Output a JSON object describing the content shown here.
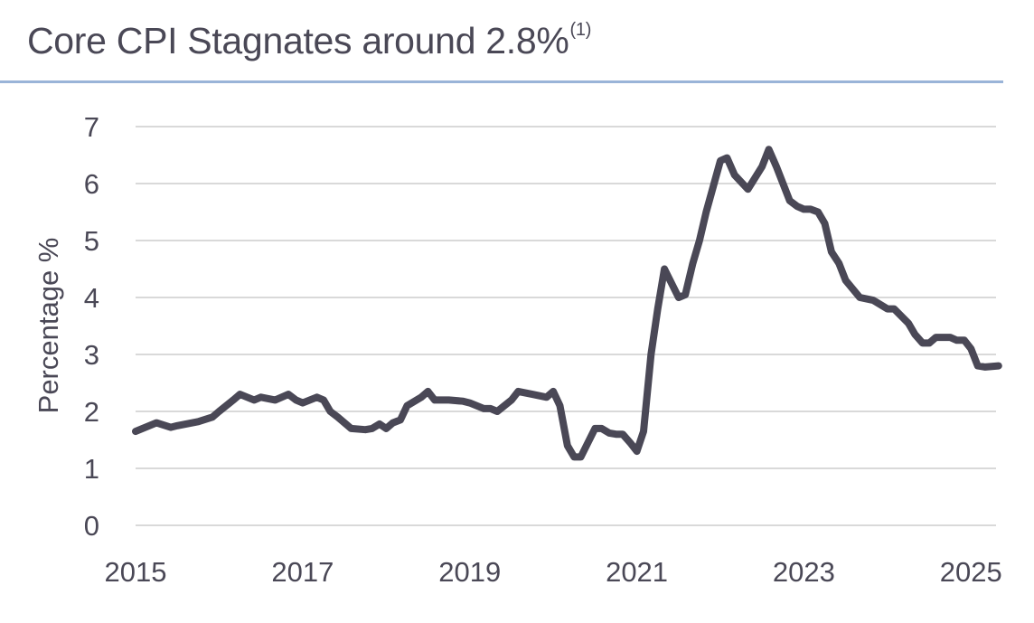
{
  "chart_data": {
    "type": "line",
    "title": "Core CPI Stagnates around 2.8%",
    "title_footnote": "(1)",
    "xlabel": "",
    "ylabel": "Percentage %",
    "ylim": [
      0,
      7
    ],
    "yticks": [
      "0",
      "1",
      "2",
      "3",
      "4",
      "5",
      "6",
      "7"
    ],
    "xticks": [
      "2015",
      "2017",
      "2019",
      "2021",
      "2023",
      "2025"
    ],
    "grid": true,
    "legend": "none",
    "colors": {
      "line": "#4a4856",
      "grid": "#d9d9d9",
      "rule": "#9ab4d8"
    },
    "series": [
      {
        "x": [
          2015.0,
          2015.25,
          2015.42,
          2015.5,
          2015.75,
          2015.92,
          2016.0,
          2016.17,
          2016.25,
          2016.42,
          2016.5,
          2016.67,
          2016.83,
          2016.92,
          2017.0,
          2017.17,
          2017.25,
          2017.33,
          2017.42,
          2017.58,
          2017.75,
          2017.83,
          2017.92,
          2018.0,
          2018.08,
          2018.17,
          2018.25,
          2018.42,
          2018.5,
          2018.58,
          2018.75,
          2018.92,
          2019.0,
          2019.17,
          2019.25,
          2019.33,
          2019.5,
          2019.58,
          2019.75,
          2019.92,
          2020.0,
          2020.08,
          2020.17,
          2020.25,
          2020.33,
          2020.5,
          2020.58,
          2020.67,
          2020.75,
          2020.83,
          2020.92,
          2021.0,
          2021.08,
          2021.17,
          2021.25,
          2021.33,
          2021.5,
          2021.58,
          2021.67,
          2021.75,
          2021.83,
          2022.0,
          2022.08,
          2022.17,
          2022.33,
          2022.5,
          2022.58,
          2022.67,
          2022.83,
          2022.92,
          2023.0,
          2023.08,
          2023.17,
          2023.25,
          2023.33,
          2023.42,
          2023.5,
          2023.67,
          2023.83,
          2024.0,
          2024.08,
          2024.25,
          2024.33,
          2024.42,
          2024.5,
          2024.58,
          2024.67,
          2024.75,
          2024.83,
          2024.92,
          2025.0,
          2025.08,
          2025.17,
          2025.33
        ],
        "y": [
          1.65,
          1.8,
          1.72,
          1.75,
          1.82,
          1.9,
          2.0,
          2.2,
          2.3,
          2.2,
          2.25,
          2.2,
          2.3,
          2.2,
          2.15,
          2.25,
          2.2,
          2.0,
          1.9,
          1.7,
          1.68,
          1.7,
          1.78,
          1.7,
          1.8,
          1.85,
          2.1,
          2.25,
          2.35,
          2.2,
          2.2,
          2.18,
          2.15,
          2.05,
          2.05,
          2.0,
          2.2,
          2.35,
          2.3,
          2.25,
          2.35,
          2.1,
          1.4,
          1.2,
          1.2,
          1.7,
          1.7,
          1.62,
          1.6,
          1.6,
          1.45,
          1.3,
          1.65,
          3.0,
          3.8,
          4.5,
          4.0,
          4.05,
          4.6,
          5.0,
          5.5,
          6.4,
          6.45,
          6.15,
          5.9,
          6.3,
          6.6,
          6.3,
          5.7,
          5.6,
          5.55,
          5.55,
          5.5,
          5.3,
          4.8,
          4.6,
          4.3,
          4.0,
          3.95,
          3.8,
          3.8,
          3.55,
          3.35,
          3.2,
          3.2,
          3.3,
          3.3,
          3.3,
          3.25,
          3.25,
          3.1,
          2.8,
          2.78,
          2.8
        ]
      }
    ]
  }
}
